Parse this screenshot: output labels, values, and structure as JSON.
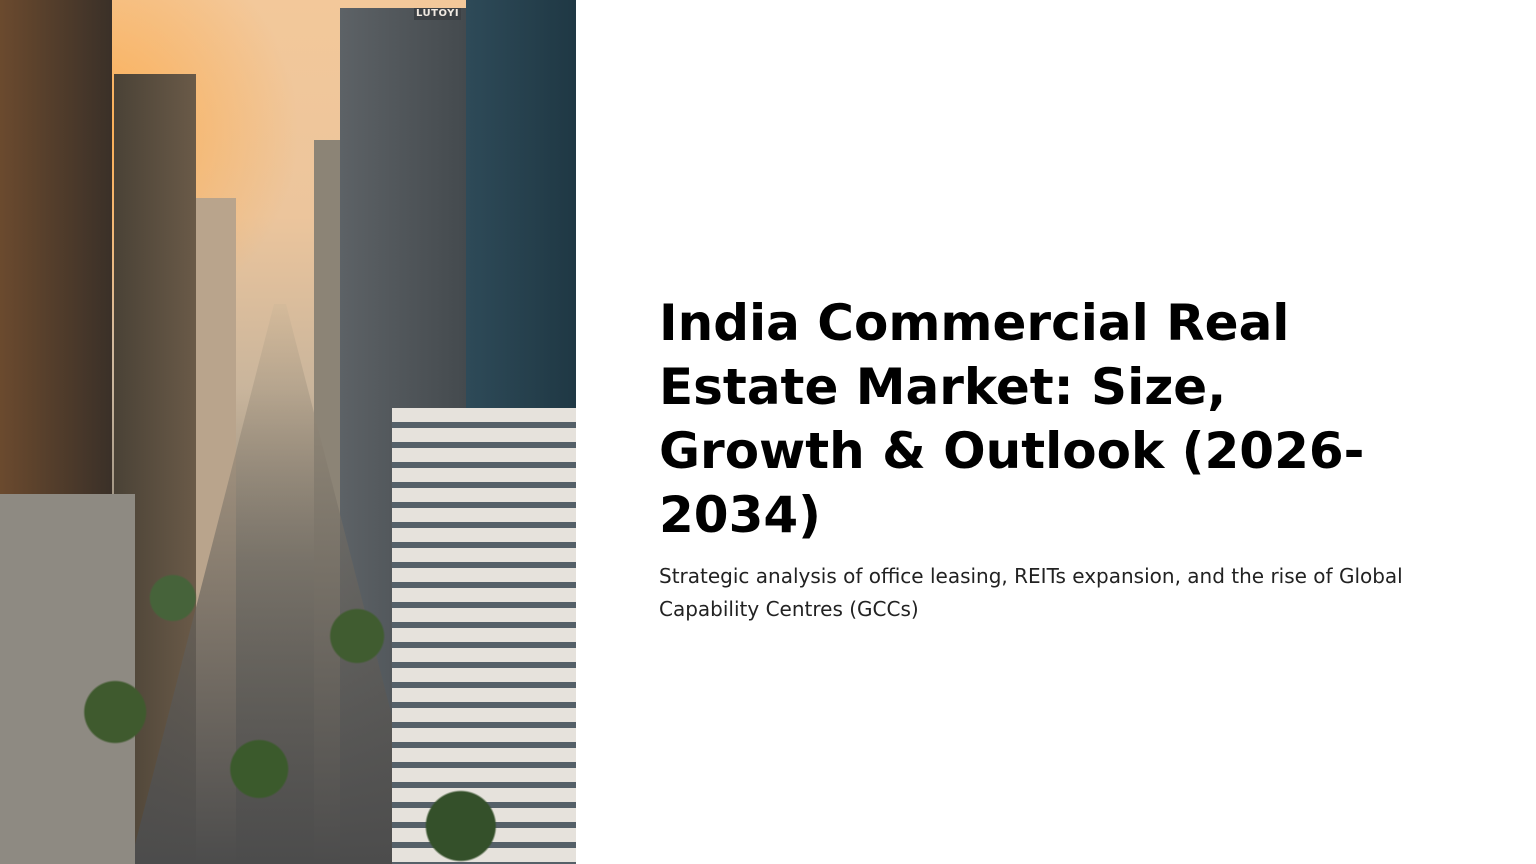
{
  "slide": {
    "title": "India Commercial Real Estate Market: Size, Growth & Outlook (2026-2034)",
    "subtitle": "Strategic analysis of office leasing, REITs expansion, and the rise of Global Capability Centres (GCCs)"
  },
  "image": {
    "subject": "city-skyline-aerial",
    "sign_text": "LUTOYI"
  }
}
